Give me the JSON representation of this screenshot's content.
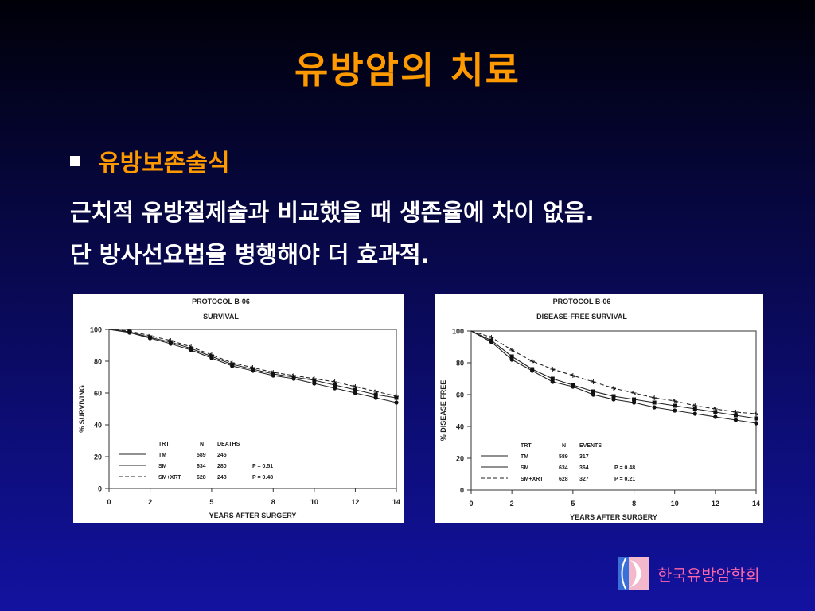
{
  "slide": {
    "title": "유방암의 치료",
    "bullet": "유방보존술식",
    "line1": "근치적 유방절제술과 비교했을 때 생존율에 차이 없음.",
    "line2": "단 방사선요법을 병행해야 더 효과적.",
    "logo_text": "한국유방암학회"
  },
  "colors": {
    "title": "#ff9900",
    "logo_text": "#ff66aa"
  },
  "chart_data": [
    {
      "type": "line",
      "title": "PROTOCOL B-06",
      "subtitle": "SURVIVAL",
      "xlabel": "YEARS AFTER SURGERY",
      "ylabel": "% SURVIVING",
      "xlim": [
        0,
        14
      ],
      "ylim": [
        0,
        100
      ],
      "xticks": [
        0,
        2,
        5,
        8,
        10,
        12,
        14
      ],
      "yticks": [
        0,
        20,
        40,
        60,
        80,
        100
      ],
      "legend": {
        "headers": [
          "TRT",
          "N",
          "DEATHS"
        ],
        "rows": [
          {
            "name": "TM",
            "n": "589",
            "count": "245",
            "p": ""
          },
          {
            "name": "SM",
            "n": "634",
            "count": "280",
            "p": "P = 0.51"
          },
          {
            "name": "SM+XRT",
            "n": "628",
            "count": "248",
            "p": "P = 0.48"
          }
        ]
      },
      "series": [
        {
          "name": "TM",
          "x": [
            0,
            1,
            2,
            3,
            4,
            5,
            6,
            7,
            8,
            9,
            10,
            11,
            12,
            13,
            14
          ],
          "values": [
            100,
            98.5,
            95,
            92,
            88,
            83,
            78,
            75,
            72,
            70,
            68,
            65,
            62,
            59,
            57
          ]
        },
        {
          "name": "SM",
          "x": [
            0,
            1,
            2,
            3,
            4,
            5,
            6,
            7,
            8,
            9,
            10,
            11,
            12,
            13,
            14
          ],
          "values": [
            100,
            98,
            94.5,
            91,
            87,
            82,
            77,
            74,
            71,
            69,
            66,
            63,
            60,
            57,
            54
          ]
        },
        {
          "name": "SM+XRT",
          "x": [
            0,
            1,
            2,
            3,
            4,
            5,
            6,
            7,
            8,
            9,
            10,
            11,
            12,
            13,
            14
          ],
          "values": [
            100,
            99,
            96,
            93,
            89,
            84,
            79,
            76,
            73,
            71,
            69,
            67,
            64,
            61,
            58
          ]
        }
      ]
    },
    {
      "type": "line",
      "title": "PROTOCOL B-06",
      "subtitle": "DISEASE-FREE SURVIVAL",
      "xlabel": "YEARS AFTER SURGERY",
      "ylabel": "% DISEASE FREE",
      "xlim": [
        0,
        14
      ],
      "ylim": [
        0,
        100
      ],
      "xticks": [
        0,
        2,
        5,
        8,
        10,
        12,
        14
      ],
      "yticks": [
        0,
        20,
        40,
        60,
        80,
        100
      ],
      "legend": {
        "headers": [
          "TRT",
          "N",
          "EVENTS"
        ],
        "rows": [
          {
            "name": "TM",
            "n": "589",
            "count": "317",
            "p": ""
          },
          {
            "name": "SM",
            "n": "634",
            "count": "364",
            "p": "P = 0.48"
          },
          {
            "name": "SM+XRT",
            "n": "628",
            "count": "327",
            "p": "P = 0.21"
          }
        ]
      },
      "series": [
        {
          "name": "TM",
          "x": [
            0,
            1,
            2,
            3,
            4,
            5,
            6,
            7,
            8,
            9,
            10,
            11,
            12,
            13,
            14
          ],
          "values": [
            100,
            94,
            84,
            76,
            70,
            66,
            62,
            59,
            57,
            55,
            53,
            51,
            49,
            47,
            45
          ]
        },
        {
          "name": "SM",
          "x": [
            0,
            1,
            2,
            3,
            4,
            5,
            6,
            7,
            8,
            9,
            10,
            11,
            12,
            13,
            14
          ],
          "values": [
            100,
            93,
            82,
            75,
            68,
            65,
            60,
            57,
            55,
            52,
            50,
            48,
            46,
            44,
            42
          ]
        },
        {
          "name": "SM+XRT",
          "x": [
            0,
            1,
            2,
            3,
            4,
            5,
            6,
            7,
            8,
            9,
            10,
            11,
            12,
            13,
            14
          ],
          "values": [
            100,
            96,
            88,
            81,
            76,
            72,
            68,
            64,
            61,
            58,
            56,
            53,
            51,
            49,
            48
          ]
        }
      ]
    }
  ]
}
